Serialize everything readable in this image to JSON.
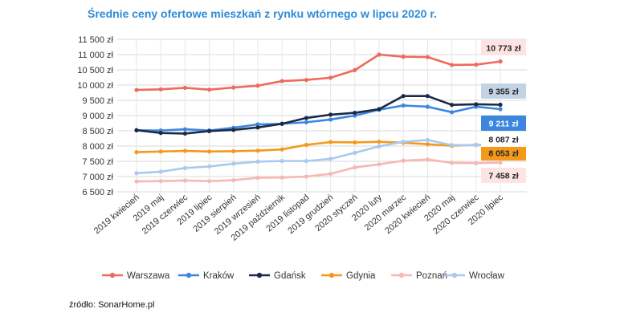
{
  "title": "Średnie ceny ofertowe mieszkań z rynku wtórnego w lipcu 2020 r.",
  "source": "źródło: SonarHome.pl",
  "chart_data": {
    "type": "line",
    "title": "Średnie ceny ofertowe mieszkań z rynku wtórnego w lipcu 2020 r.",
    "xlabel": "",
    "ylabel": "",
    "ylim": [
      6500,
      11500
    ],
    "grid": true,
    "legend_position": "bottom",
    "y_ticks": [
      "6 500 zł",
      "7 000 zł",
      "7 500 zł",
      "8 000 zł",
      "8 500 zł",
      "9 000 zł",
      "9 500 zł",
      "10 000 zł",
      "10 500 zł",
      "11 000 zł",
      "11 500 zł"
    ],
    "categories": [
      "2019 kwiecień",
      "2019 maj",
      "2019 czerwiec",
      "2019 lipiec",
      "2019 sierpień",
      "2019 wrzesień",
      "2019 październik",
      "2019 listopad",
      "2019 grudzień",
      "2020 styczeń",
      "2020 luty",
      "2020 marzec",
      "2020 kwiecień",
      "2020 maj",
      "2020 czerwiec",
      "2020 lipiec"
    ],
    "series": [
      {
        "name": "Warszawa",
        "color": "#ec6b5e",
        "values": [
          9840,
          9860,
          9910,
          9850,
          9920,
          9980,
          10130,
          10170,
          10240,
          10490,
          11000,
          10930,
          10920,
          10660,
          10670,
          10773
        ],
        "end_label": "10 773 zł",
        "label_bg": "#fde4e2",
        "label_color": "#222222"
      },
      {
        "name": "Kraków",
        "color": "#3d86e0",
        "values": [
          8520,
          8510,
          8550,
          8510,
          8600,
          8710,
          8730,
          8780,
          8870,
          9000,
          9190,
          9330,
          9290,
          9110,
          9290,
          9211
        ],
        "end_label": "9 211 zł",
        "label_bg": "#3d86e0",
        "label_color": "#ffffff"
      },
      {
        "name": "Gdańsk",
        "color": "#1b2a45",
        "values": [
          8520,
          8430,
          8410,
          8490,
          8530,
          8610,
          8730,
          8920,
          9030,
          9090,
          9210,
          9640,
          9640,
          9350,
          9370,
          9355
        ],
        "end_label": "9 355 zł",
        "label_bg": "#c3d3e6",
        "label_color": "#222222"
      },
      {
        "name": "Gdynia",
        "color": "#f39a1d",
        "values": [
          7800,
          7820,
          7840,
          7820,
          7830,
          7850,
          7890,
          8040,
          8130,
          8120,
          8140,
          8110,
          8060,
          8010,
          8040,
          8053
        ],
        "end_label": "8 053 zł",
        "label_bg": "#f39a1d",
        "label_color": "#222222"
      },
      {
        "name": "Poznań",
        "color": "#f7b8b3",
        "values": [
          6840,
          6850,
          6870,
          6850,
          6880,
          6960,
          6970,
          7000,
          7090,
          7300,
          7400,
          7520,
          7560,
          7450,
          7440,
          7458
        ],
        "end_label": "7 458 zł",
        "label_bg": "#fde4e2",
        "label_color": "#222222"
      },
      {
        "name": "Wrocław",
        "color": "#a9c9ee",
        "values": [
          7110,
          7160,
          7280,
          7330,
          7420,
          7490,
          7510,
          7510,
          7580,
          7780,
          7990,
          8140,
          8200,
          8030,
          8030,
          8087
        ],
        "end_label": "8 087 zł",
        "label_bg": "#ffffff",
        "label_color": "#222222"
      }
    ]
  }
}
